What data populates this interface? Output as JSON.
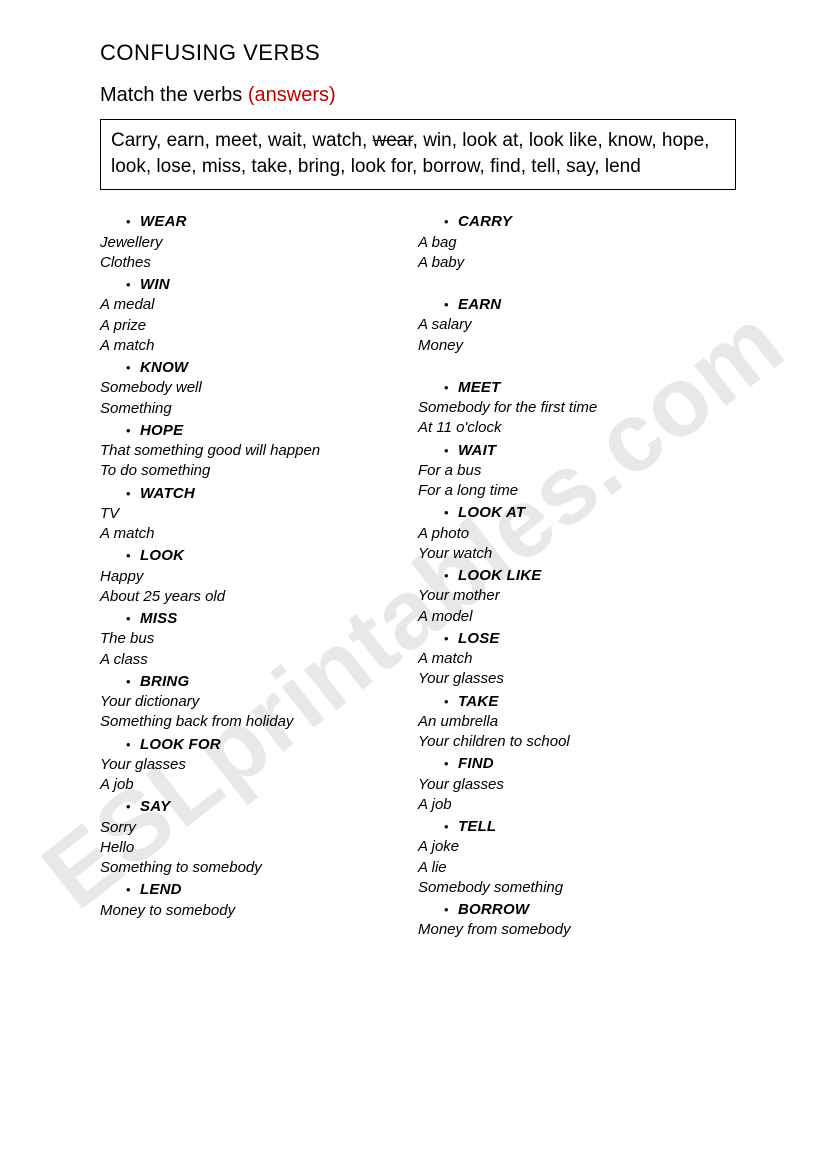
{
  "title": "CONFUSING VERBS",
  "subtitle_prefix": "Match the verbs ",
  "subtitle_answers": "(answers)",
  "verb_box_parts": [
    {
      "t": "Carry, earn, meet, wait, watch, ",
      "strike": false
    },
    {
      "t": "wear",
      "strike": true
    },
    {
      "t": ", win, look at, look like, know, hope, look, lose, miss, take, bring, look for, borrow, find, tell, say, lend",
      "strike": false
    }
  ],
  "watermark": "ESLprintables.com",
  "left": [
    {
      "verb": "WEAR",
      "examples": [
        "Jewellery",
        "Clothes"
      ]
    },
    {
      "verb": "WIN",
      "examples": [
        "A medal",
        "A prize",
        "A match"
      ]
    },
    {
      "verb": "KNOW",
      "examples": [
        "Somebody well",
        "Something"
      ]
    },
    {
      "verb": "HOPE",
      "examples": [
        "That something good will happen",
        "To do something"
      ]
    },
    {
      "verb": "WATCH",
      "examples": [
        "TV",
        "A match"
      ]
    },
    {
      "verb": "LOOK",
      "examples": [
        "Happy",
        "About 25 years old"
      ]
    },
    {
      "verb": "MISS",
      "examples": [
        "The bus",
        "A class"
      ]
    },
    {
      "verb": "BRING",
      "examples": [
        "Your dictionary",
        "Something back from holiday"
      ]
    },
    {
      "verb": "LOOK FOR",
      "examples": [
        "Your glasses",
        "A job"
      ]
    },
    {
      "verb": "SAY",
      "examples": [
        "Sorry",
        "Hello",
        "Something to somebody"
      ]
    },
    {
      "verb": "LEND",
      "examples": [
        "Money to somebody"
      ]
    }
  ],
  "right": [
    {
      "verb": "CARRY",
      "examples": [
        "A bag",
        "A baby"
      ]
    },
    {
      "verb": "EARN",
      "examples": [
        "A salary",
        "Money"
      ],
      "gap_before": true
    },
    {
      "verb": "MEET",
      "examples": [
        "Somebody for the first time",
        "At 11 o'clock"
      ],
      "gap_before": true
    },
    {
      "verb": "WAIT",
      "examples": [
        "For a bus",
        "For a long time"
      ]
    },
    {
      "verb": "LOOK AT",
      "examples": [
        "A photo",
        "Your watch"
      ]
    },
    {
      "verb": "LOOK LIKE",
      "examples": [
        "Your mother",
        "A model"
      ]
    },
    {
      "verb": "LOSE",
      "examples": [
        "A match",
        "Your glasses"
      ]
    },
    {
      "verb": "TAKE",
      "examples": [
        "An umbrella",
        "Your children to school"
      ]
    },
    {
      "verb": "FIND",
      "examples": [
        "Your glasses",
        "A job"
      ]
    },
    {
      "verb": "TELL",
      "examples": [
        "A joke",
        "A lie",
        "Somebody something"
      ]
    },
    {
      "verb": "BORROW",
      "examples": [
        "Money from somebody"
      ]
    }
  ]
}
